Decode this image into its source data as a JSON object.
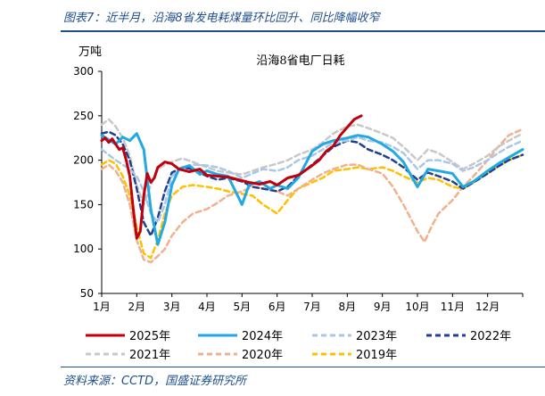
{
  "figure": {
    "caption": "图表7：近半月，沿海8省发电耗煤量环比回升、同比降幅收窄",
    "source": "资料来源：CCTD，国盛证券研究所"
  },
  "colors": {
    "2025": "#c0000c",
    "2024": "#22a8e2",
    "2023": "#a9c7e6",
    "2022": "#1f3f8f",
    "2021": "#c8c8c8",
    "2020": "#f2b08f",
    "2019": "#ffc000",
    "rule": "#1f4e8c"
  },
  "chart_data": {
    "type": "line",
    "title": "沿海8省电厂日耗",
    "ylabel": "万吨",
    "xlabel": "",
    "ylim": [
      50,
      300
    ],
    "yticks": [
      50,
      100,
      150,
      200,
      250,
      300
    ],
    "xticks": [
      "1月",
      "2月",
      "3月",
      "4月",
      "5月",
      "6月",
      "7月",
      "8月",
      "9月",
      "10月",
      "11月",
      "12月"
    ],
    "x_unit": "month-position (1 = Jan 1, 13 = Dec 31)",
    "grid": false,
    "legend_position": "bottom",
    "series": [
      {
        "name": "2025年",
        "style": "solid",
        "width": 3,
        "x": [
          1,
          1.1,
          1.2,
          1.3,
          1.4,
          1.5,
          1.6,
          1.7,
          1.8,
          1.9,
          2.0,
          2.1,
          2.2,
          2.3,
          2.4,
          2.5,
          2.6,
          2.8,
          3.0,
          3.2,
          3.5,
          3.8,
          4.0,
          4.3,
          4.6,
          5.0,
          5.2,
          5.5,
          5.8,
          6.0,
          6.3,
          6.6,
          7.0,
          7.2,
          7.4,
          7.6,
          7.8,
          8.0,
          8.2,
          8.4
        ],
        "y": [
          222,
          225,
          220,
          224,
          218,
          212,
          214,
          200,
          182,
          145,
          112,
          120,
          160,
          185,
          175,
          180,
          192,
          198,
          196,
          190,
          187,
          190,
          183,
          182,
          181,
          177,
          175,
          173,
          176,
          172,
          180,
          183,
          194,
          200,
          210,
          216,
          228,
          237,
          246,
          250
        ]
      },
      {
        "name": "2024年",
        "style": "solid",
        "width": 3,
        "x": [
          1,
          1.2,
          1.4,
          1.6,
          1.8,
          2.0,
          2.2,
          2.4,
          2.6,
          2.8,
          3.0,
          3.2,
          3.5,
          3.8,
          4.0,
          4.3,
          4.6,
          5.0,
          5.2,
          5.5,
          5.8,
          6.0,
          6.3,
          6.6,
          7.0,
          7.3,
          7.6,
          8.0,
          8.3,
          8.6,
          9.0,
          9.3,
          9.6,
          10.0,
          10.3,
          10.6,
          11.0,
          11.3,
          11.6,
          12.0,
          12.3,
          12.6,
          13.0
        ],
        "y": [
          228,
          223,
          218,
          226,
          222,
          230,
          212,
          145,
          105,
          130,
          172,
          190,
          194,
          184,
          188,
          184,
          182,
          150,
          172,
          176,
          168,
          172,
          168,
          180,
          210,
          218,
          222,
          225,
          228,
          226,
          218,
          210,
          198,
          170,
          190,
          188,
          185,
          170,
          176,
          188,
          196,
          203,
          212
        ]
      },
      {
        "name": "2023年",
        "style": "dash",
        "width": 2.5,
        "x": [
          1,
          1.2,
          1.4,
          1.6,
          1.8,
          2.0,
          2.2,
          2.4,
          2.6,
          2.8,
          3.0,
          3.3,
          3.6,
          4.0,
          4.3,
          4.6,
          5.0,
          5.3,
          5.6,
          6.0,
          6.3,
          6.6,
          7.0,
          7.3,
          7.6,
          8.0,
          8.3,
          8.6,
          9.0,
          9.3,
          9.6,
          10.0,
          10.3,
          10.6,
          11.0,
          11.3,
          11.6,
          12.0,
          12.3,
          12.6,
          13.0
        ],
        "y": [
          212,
          206,
          200,
          195,
          190,
          182,
          165,
          140,
          130,
          150,
          182,
          192,
          195,
          194,
          192,
          188,
          180,
          185,
          190,
          188,
          192,
          200,
          205,
          212,
          220,
          222,
          226,
          222,
          220,
          215,
          208,
          190,
          200,
          200,
          196,
          188,
          192,
          200,
          208,
          215,
          222
        ]
      },
      {
        "name": "2022年",
        "style": "dash",
        "width": 2.5,
        "x": [
          1,
          1.2,
          1.4,
          1.6,
          1.8,
          2.0,
          2.2,
          2.4,
          2.6,
          2.8,
          3.0,
          3.3,
          3.6,
          4.0,
          4.3,
          4.6,
          5.0,
          5.3,
          5.6,
          6.0,
          6.3,
          6.6,
          7.0,
          7.3,
          7.6,
          8.0,
          8.3,
          8.6,
          9.0,
          9.3,
          9.6,
          10.0,
          10.3,
          10.6,
          11.0,
          11.3,
          11.6,
          12.0,
          12.3,
          12.6,
          13.0
        ],
        "y": [
          230,
          232,
          228,
          218,
          200,
          168,
          130,
          115,
          135,
          165,
          186,
          192,
          190,
          182,
          178,
          180,
          176,
          170,
          168,
          165,
          170,
          182,
          195,
          205,
          215,
          222,
          220,
          212,
          206,
          200,
          192,
          178,
          186,
          182,
          176,
          168,
          175,
          185,
          193,
          200,
          206
        ]
      },
      {
        "name": "2021年",
        "style": "dash",
        "width": 2.5,
        "x": [
          1,
          1.2,
          1.4,
          1.6,
          1.8,
          2.0,
          2.2,
          2.4,
          2.6,
          2.8,
          3.0,
          3.3,
          3.6,
          4.0,
          4.3,
          4.6,
          5.0,
          5.3,
          5.6,
          6.0,
          6.3,
          6.6,
          7.0,
          7.3,
          7.6,
          8.0,
          8.3,
          8.6,
          9.0,
          9.3,
          9.6,
          10.0,
          10.3,
          10.6,
          11.0,
          11.3,
          11.6,
          12.0,
          12.3,
          12.6,
          13.0
        ],
        "y": [
          240,
          246,
          238,
          225,
          205,
          172,
          150,
          172,
          190,
          195,
          198,
          202,
          198,
          192,
          188,
          186,
          184,
          188,
          192,
          196,
          200,
          206,
          212,
          220,
          230,
          238,
          240,
          236,
          230,
          225,
          215,
          200,
          212,
          208,
          198,
          190,
          196,
          205,
          215,
          222,
          230
        ]
      },
      {
        "name": "2020年",
        "style": "dash",
        "width": 2.5,
        "x": [
          1,
          1.2,
          1.4,
          1.6,
          1.8,
          2.0,
          2.2,
          2.4,
          2.6,
          2.8,
          3.0,
          3.3,
          3.6,
          4.0,
          4.3,
          4.6,
          5.0,
          5.3,
          5.6,
          6.0,
          6.3,
          6.6,
          7.0,
          7.3,
          7.6,
          8.0,
          8.3,
          8.6,
          9.0,
          9.3,
          9.6,
          10.0,
          10.2,
          10.4,
          10.6,
          11.0,
          11.3,
          11.6,
          12.0,
          12.3,
          12.6,
          13.0
        ],
        "y": [
          190,
          195,
          188,
          175,
          150,
          110,
          88,
          85,
          92,
          100,
          115,
          130,
          140,
          145,
          152,
          160,
          165,
          170,
          168,
          165,
          160,
          168,
          178,
          185,
          190,
          195,
          195,
          190,
          185,
          170,
          150,
          120,
          108,
          125,
          140,
          155,
          170,
          182,
          200,
          215,
          228,
          235
        ]
      },
      {
        "name": "2019年",
        "style": "dash",
        "width": 2.5,
        "x": [
          1,
          1.2,
          1.4,
          1.6,
          1.8,
          2.0,
          2.2,
          2.4,
          2.6,
          2.8,
          3.0,
          3.3,
          3.6,
          4.0,
          4.3,
          4.6,
          5.0,
          5.3,
          5.6,
          6.0,
          6.3,
          6.6,
          7.0,
          7.3,
          7.6,
          8.0,
          8.3,
          8.6,
          9.0,
          9.3,
          9.6,
          10.0,
          10.3,
          10.6,
          11.0,
          11.3,
          11.6,
          12.0,
          12.3,
          12.6,
          13.0
        ],
        "y": [
          195,
          200,
          196,
          182,
          160,
          125,
          95,
          90,
          110,
          140,
          160,
          170,
          172,
          170,
          168,
          165,
          162,
          160,
          150,
          140,
          155,
          168,
          175,
          180,
          188,
          190,
          192,
          190,
          192,
          188,
          182,
          175,
          180,
          178,
          170,
          168,
          175,
          185,
          193,
          200,
          206
        ]
      }
    ],
    "legend_order": [
      "2025年",
      "2024年",
      "2023年",
      "2022年",
      "2021年",
      "2020年",
      "2019年"
    ]
  }
}
